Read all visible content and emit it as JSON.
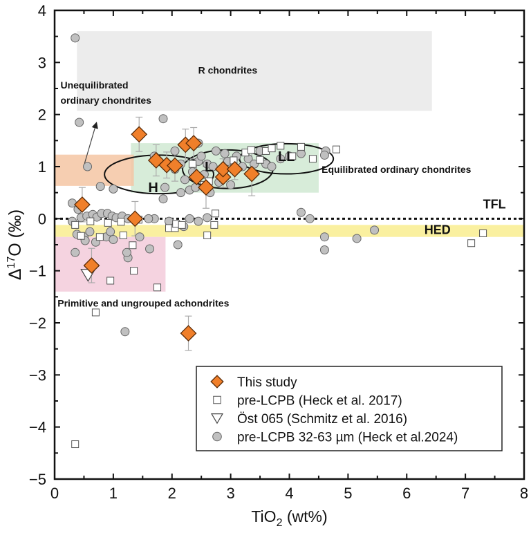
{
  "chart_data": {
    "type": "scatter",
    "title": "",
    "xlabel": "TiO",
    "xlabel_sub": "2",
    "xlabel_suffix": " (wt%)",
    "ylabel_prefix": "Δ",
    "ylabel_sup": "17",
    "ylabel_suffix": "O (‰)",
    "xlim": [
      0,
      8
    ],
    "ylim": [
      -5,
      4
    ],
    "xticks": [
      0,
      1,
      2,
      3,
      4,
      5,
      6,
      7,
      8
    ],
    "yticks": [
      -5,
      -4,
      -3,
      -2,
      -1,
      0,
      1,
      2,
      3,
      4
    ],
    "legend_position": "bottom-right",
    "colors": {
      "this_study": "#f07f2a",
      "heck2024": "#c0c0c0",
      "r_box": "#ececec",
      "uoc_box": "#f5c5a3",
      "eoc_box": "#d3ead5",
      "hed_band": "#faf0a0",
      "achondrite_box": "#f5d3e0"
    },
    "regions": [
      {
        "name": "R chondrites",
        "x": [
          0.38,
          6.43
        ],
        "y": [
          2.07,
          3.6
        ],
        "color": "#ececec",
        "label": "R chondrites",
        "label_at": [
          2.95,
          2.85
        ]
      },
      {
        "name": "Unequilibrated ordinary chondrites",
        "x": [
          0,
          1.35
        ],
        "y": [
          0.63,
          1.23
        ],
        "color": "#f5c5a3",
        "label_lines": [
          "Unequilibrated",
          "ordinary chondrites"
        ],
        "label_at": [
          0.1,
          2.5
        ]
      },
      {
        "name": "Equilibrated ordinary chondrites",
        "x": [
          1.3,
          4.5
        ],
        "y": [
          0.5,
          1.45
        ],
        "color": "#d3ead5",
        "label": "Equilibrated ordinary chondrites",
        "label_at": [
          4.55,
          0.95
        ]
      },
      {
        "name": "Primitive and ungrouped achondrites",
        "x": [
          0,
          1.89
        ],
        "y": [
          -1.4,
          -0.35
        ],
        "color": "#f5d3e0",
        "label": "Primitive and ungrouped achondrites",
        "label_at": [
          0.05,
          -1.62
        ]
      },
      {
        "name": "HED",
        "x": [
          0,
          8
        ],
        "y": [
          -0.35,
          -0.12
        ],
        "color": "#faf0a0",
        "label": "HED",
        "label_at": [
          6.3,
          -0.23
        ]
      }
    ],
    "ellipses": [
      {
        "label": "H",
        "cx": 1.78,
        "cy": 0.85,
        "rx": 0.93,
        "ry": 0.37
      },
      {
        "label": "L",
        "cx": 2.95,
        "cy": 0.95,
        "rx": 0.77,
        "ry": 0.37
      },
      {
        "label": "LL",
        "cx": 3.95,
        "cy": 1.15,
        "rx": 0.8,
        "ry": 0.29
      }
    ],
    "reference_line": {
      "label": "TFL",
      "y": 0,
      "label_at": [
        7.3,
        0.2
      ]
    },
    "annotation": {
      "text": "Unequilibrated ordinary chondrites",
      "arrow_from": [
        0.51,
        1.06
      ],
      "arrow_to": [
        0.71,
        1.83
      ]
    },
    "series": [
      {
        "name": "This study",
        "marker": "diamond",
        "points": [
          [
            1.44,
            1.62,
            0.33
          ],
          [
            1.73,
            1.12,
            0.3
          ],
          [
            1.91,
            1.03,
            0.25
          ],
          [
            2.05,
            1.02,
            0.3
          ],
          [
            2.23,
            1.42,
            0.3
          ],
          [
            2.37,
            1.45,
            0.3
          ],
          [
            2.42,
            0.8,
            0.25
          ],
          [
            2.58,
            0.6,
            0.4
          ],
          [
            2.87,
            0.8,
            0.2
          ],
          [
            2.87,
            0.95,
            0.2
          ],
          [
            3.07,
            0.95,
            0.2
          ],
          [
            3.36,
            0.86,
            0.42
          ],
          [
            0.47,
            0.27,
            0.33
          ],
          [
            1.37,
            0.0,
            0.33
          ],
          [
            0.63,
            -0.9,
            0.33
          ],
          [
            2.28,
            -2.2,
            0.33
          ]
        ]
      },
      {
        "name": "pre-LCPB (Heck et al. 2017)",
        "marker": "square",
        "points": [
          [
            0.35,
            -0.12
          ],
          [
            0.45,
            -0.33
          ],
          [
            0.61,
            -0.05
          ],
          [
            0.77,
            -0.35
          ],
          [
            0.91,
            -0.08
          ],
          [
            0.95,
            -1.19
          ],
          [
            1.13,
            -0.06
          ],
          [
            1.17,
            -0.32
          ],
          [
            1.33,
            -0.51
          ],
          [
            1.35,
            -1.0
          ],
          [
            1.43,
            -0.02
          ],
          [
            1.75,
            -1.32
          ],
          [
            1.95,
            -0.18
          ],
          [
            2.05,
            -0.18
          ],
          [
            2.07,
            -0.1
          ],
          [
            2.17,
            -0.12
          ],
          [
            2.6,
            -0.32
          ],
          [
            2.74,
            0.1
          ],
          [
            2.72,
            -0.12
          ],
          [
            0.7,
            -1.8
          ],
          [
            0.35,
            -4.33
          ],
          [
            2.35,
            1.05
          ],
          [
            2.55,
            0.65
          ],
          [
            2.63,
            0.72
          ],
          [
            3.05,
            1.12
          ],
          [
            3.25,
            1.27
          ],
          [
            3.35,
            1.32
          ],
          [
            3.5,
            1.13
          ],
          [
            3.6,
            1.3
          ],
          [
            3.7,
            1.35
          ],
          [
            3.85,
            1.4
          ],
          [
            4.05,
            1.2
          ],
          [
            4.2,
            1.38
          ],
          [
            4.4,
            1.15
          ],
          [
            4.8,
            1.33
          ],
          [
            7.1,
            -0.47
          ],
          [
            7.3,
            -0.28
          ]
        ]
      },
      {
        "name": "Öst 065 (Schmitz et al. 2016)",
        "marker": "triangle-down",
        "points": [
          [
            0.57,
            -1.08
          ]
        ]
      },
      {
        "name": "pre-LCPB 32-63 µm (Heck et al.2024)",
        "marker": "circle",
        "points": [
          [
            0.35,
            3.47
          ],
          [
            0.42,
            1.85
          ],
          [
            0.56,
            1.0
          ],
          [
            1.85,
            1.92
          ],
          [
            0.78,
            0.62
          ],
          [
            1.0,
            0.57
          ],
          [
            0.3,
            0.3
          ],
          [
            0.4,
            0.18
          ],
          [
            0.3,
            -0.05
          ],
          [
            0.45,
            0.02
          ],
          [
            0.55,
            0.05
          ],
          [
            0.65,
            0.08
          ],
          [
            0.72,
            0.03
          ],
          [
            0.8,
            0.1
          ],
          [
            0.9,
            0.1
          ],
          [
            0.98,
            0.05
          ],
          [
            1.05,
            0.02
          ],
          [
            1.15,
            0.05
          ],
          [
            1.25,
            0.0
          ],
          [
            0.38,
            -0.3
          ],
          [
            0.5,
            -0.35
          ],
          [
            0.6,
            -0.25
          ],
          [
            0.7,
            -0.45
          ],
          [
            0.88,
            -0.35
          ],
          [
            0.95,
            -0.25
          ],
          [
            1.0,
            -0.4
          ],
          [
            0.35,
            -0.65
          ],
          [
            0.52,
            -0.42
          ],
          [
            1.25,
            -0.75
          ],
          [
            1.23,
            -0.65
          ],
          [
            1.45,
            -0.35
          ],
          [
            1.62,
            -0.58
          ],
          [
            1.7,
            0.0
          ],
          [
            1.95,
            -0.05
          ],
          [
            2.1,
            -0.5
          ],
          [
            2.3,
            0.0
          ],
          [
            2.45,
            -0.05
          ],
          [
            2.6,
            0.02
          ],
          [
            1.2,
            -2.17
          ],
          [
            1.6,
            0.0
          ],
          [
            2.2,
            -0.15
          ],
          [
            1.85,
            0.38
          ],
          [
            1.88,
            0.6
          ],
          [
            2.05,
            0.95
          ],
          [
            2.15,
            1.05
          ],
          [
            2.22,
            0.75
          ],
          [
            2.3,
            0.55
          ],
          [
            2.35,
            0.9
          ],
          [
            2.4,
            0.6
          ],
          [
            2.45,
            1.1
          ],
          [
            2.5,
            1.2
          ],
          [
            2.55,
            0.85
          ],
          [
            2.6,
            1.05
          ],
          [
            2.65,
            0.5
          ],
          [
            2.7,
            1.0
          ],
          [
            2.75,
            1.3
          ],
          [
            2.8,
            0.7
          ],
          [
            2.9,
            1.25
          ],
          [
            2.95,
            1.1
          ],
          [
            3.0,
            0.65
          ],
          [
            3.1,
            1.2
          ],
          [
            3.2,
            1.0
          ],
          [
            3.3,
            1.15
          ],
          [
            3.4,
            1.05
          ],
          [
            3.5,
            1.3
          ],
          [
            3.6,
            1.05
          ],
          [
            3.7,
            1.0
          ],
          [
            3.85,
            1.15
          ],
          [
            4.0,
            1.2
          ],
          [
            4.2,
            1.25
          ],
          [
            4.62,
            1.3
          ],
          [
            4.6,
            1.22
          ],
          [
            4.2,
            0.12
          ],
          [
            4.35,
            0.0
          ],
          [
            4.6,
            -0.35
          ],
          [
            4.6,
            -0.6
          ],
          [
            5.15,
            -0.38
          ],
          [
            5.45,
            -0.22
          ],
          [
            2.45,
            1.45
          ],
          [
            2.05,
            1.3
          ],
          [
            2.15,
            0.5
          ],
          [
            1.7,
            1.2
          ]
        ]
      }
    ]
  }
}
